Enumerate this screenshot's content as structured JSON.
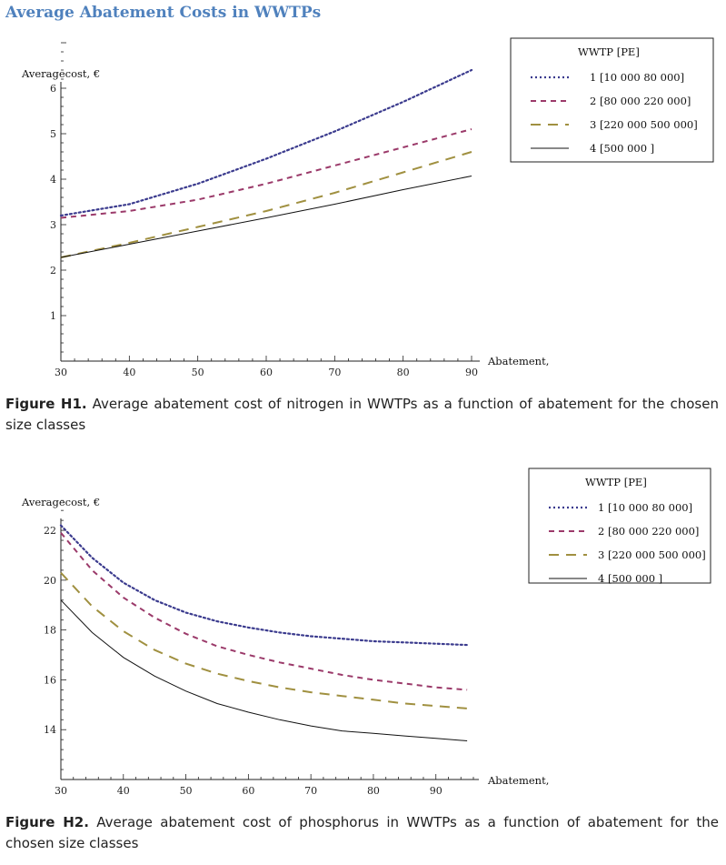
{
  "page": {
    "title": "Average Abatement Costs in WWTPs"
  },
  "captions": [
    {
      "label": "Figure H1.",
      "text": "Average abatement cost of nitrogen in WWTPs as a function of abatement for the chosen size classes"
    },
    {
      "label": "Figure H2.",
      "text": "Average abatement cost of phosphorus in WWTPs as a function of abatement for the chosen size classes"
    }
  ],
  "colors": {
    "series1": "#3b3b8e",
    "series2": "#9b3a6a",
    "series3": "#a09040",
    "series4": "#111111"
  },
  "chart_data": [
    {
      "type": "line",
      "xlabel": "Abatement,",
      "ylabel": "Averagecost, €",
      "xlim": [
        30,
        90
      ],
      "ylim": [
        0,
        7
      ],
      "xticks": [
        30,
        40,
        50,
        60,
        70,
        80,
        90
      ],
      "yticks": [
        1,
        2,
        3,
        4,
        5,
        6
      ],
      "legend_title": "WWTP [PE]",
      "legend_position": "top-right",
      "grid": false,
      "x": [
        30,
        40,
        50,
        60,
        70,
        80,
        90
      ],
      "series": [
        {
          "name": "1 [10 000  80 000]",
          "style": "dotted",
          "values": [
            3.2,
            3.45,
            3.9,
            4.45,
            5.05,
            5.7,
            6.4
          ]
        },
        {
          "name": "2 [80 000  220 000]",
          "style": "dashed",
          "values": [
            3.15,
            3.3,
            3.55,
            3.9,
            4.3,
            4.7,
            5.1
          ]
        },
        {
          "name": "3 [220 000  500 000]",
          "style": "longdash",
          "values": [
            2.28,
            2.6,
            2.95,
            3.3,
            3.7,
            4.15,
            4.6
          ]
        },
        {
          "name": "4 [500 000  ]",
          "style": "solid",
          "values": [
            2.28,
            2.57,
            2.86,
            3.15,
            3.45,
            3.77,
            4.07
          ]
        }
      ]
    },
    {
      "type": "line",
      "xlabel": "Abatement,",
      "ylabel": "Averagecost, €",
      "xlim": [
        30,
        96
      ],
      "ylim": [
        12,
        23.5
      ],
      "xticks": [
        30,
        40,
        50,
        60,
        70,
        80,
        90
      ],
      "yticks": [
        14,
        16,
        18,
        20,
        22
      ],
      "legend_title": "WWTP [PE]",
      "legend_position": "top-right",
      "grid": false,
      "x": [
        30,
        35,
        40,
        45,
        50,
        55,
        60,
        65,
        70,
        75,
        80,
        85,
        90,
        95
      ],
      "series": [
        {
          "name": "1 [10 000  80 000]",
          "style": "dotted",
          "values": [
            22.2,
            20.9,
            19.9,
            19.2,
            18.7,
            18.35,
            18.1,
            17.9,
            17.75,
            17.65,
            17.55,
            17.5,
            17.45,
            17.4
          ]
        },
        {
          "name": "2 [80 000  220 000]",
          "style": "dashed",
          "values": [
            21.9,
            20.4,
            19.3,
            18.5,
            17.85,
            17.35,
            17.0,
            16.7,
            16.45,
            16.2,
            16.0,
            15.85,
            15.7,
            15.6
          ]
        },
        {
          "name": "3 [220 000  500 000]",
          "style": "longdash",
          "values": [
            20.3,
            18.95,
            17.95,
            17.2,
            16.65,
            16.25,
            15.95,
            15.7,
            15.5,
            15.35,
            15.2,
            15.05,
            14.95,
            14.85
          ]
        },
        {
          "name": "4 [500 000  ]",
          "style": "solid",
          "values": [
            19.2,
            17.9,
            16.9,
            16.15,
            15.55,
            15.05,
            14.7,
            14.4,
            14.15,
            13.95,
            13.85,
            13.75,
            13.65,
            13.55
          ]
        }
      ]
    }
  ]
}
